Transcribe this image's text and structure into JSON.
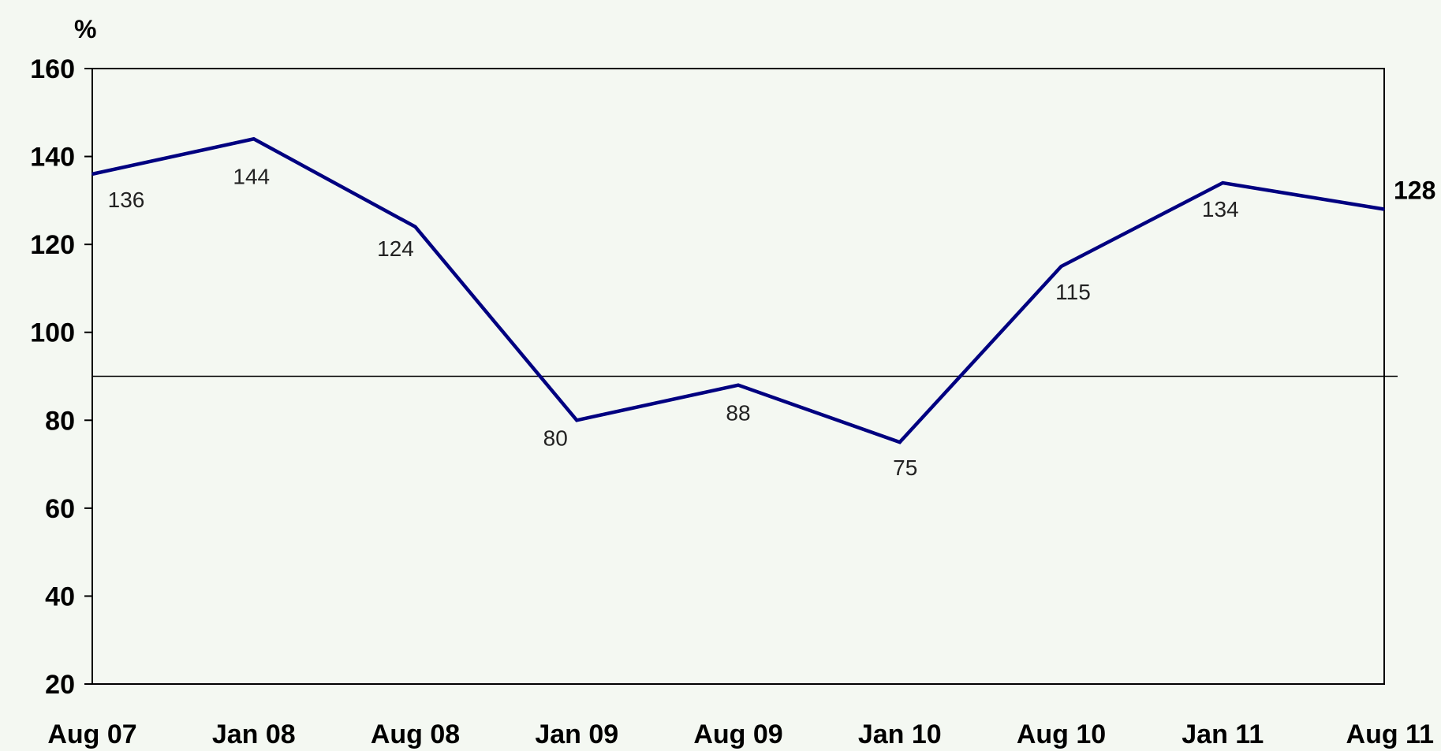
{
  "chart_data": {
    "type": "line",
    "title": "",
    "ylabel": "%",
    "xlabel": "",
    "categories": [
      "Aug 07",
      "Jan 08",
      "Aug 08",
      "Jan 09",
      "Aug 09",
      "Jan 10",
      "Aug 10",
      "Jan 11",
      "Aug 11"
    ],
    "y_ticks": [
      "160",
      "140",
      "120",
      "100",
      "80",
      "60",
      "40",
      "20"
    ],
    "ylim": [
      20,
      160
    ],
    "reference_line": 90,
    "grid": false,
    "series": [
      {
        "values": [
          136,
          144,
          124,
          80,
          88,
          75,
          115,
          134,
          128
        ],
        "labels": [
          "136",
          "144",
          "124",
          "80",
          "88",
          "75",
          "115",
          "134",
          "128"
        ],
        "color": "#000080"
      }
    ],
    "axis_color": "#000000"
  }
}
